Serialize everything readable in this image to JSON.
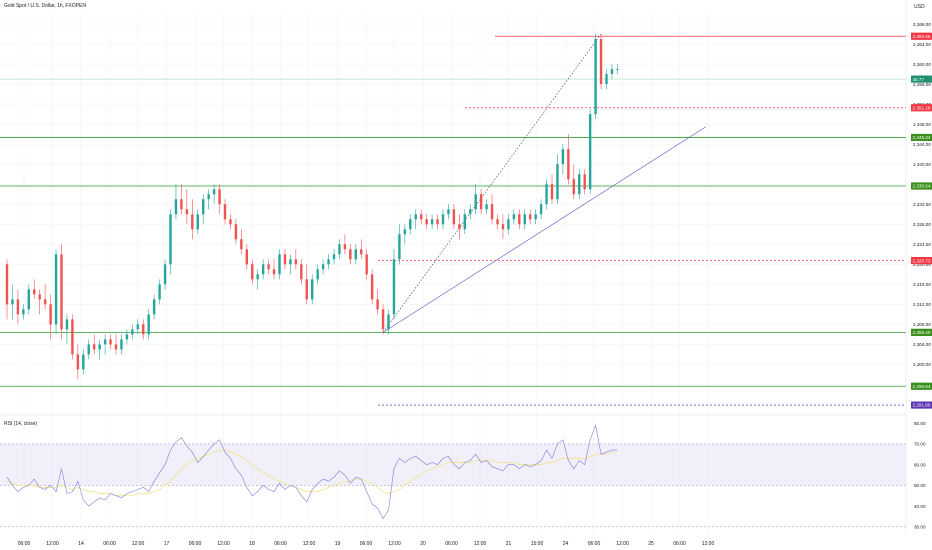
{
  "header": {
    "title": "Gold Spot / U.S. Dollar, 1h, FXOPEN",
    "currency": "USD"
  },
  "rsi": {
    "title": "RSI (14, close)"
  },
  "colors": {
    "up": "#26a69a",
    "down": "#ef5350",
    "support": "#2e9e2e",
    "support_label": "#3a8f1e",
    "resistance": "#f23645",
    "purple": "#7e57c2",
    "trend": "#5b5bc8",
    "rsi_line": "#7e7ed6",
    "rsi_ma": "#f2e279",
    "rsi_band": "#f1effa",
    "grid": "#e9ecf3"
  },
  "chart_data": [
    {
      "type": "candlestick",
      "title": "Gold Spot / U.S. Dollar, 1h, FXOPEN",
      "y_ticks": [
        "2,368.00",
        "2,364.00",
        "2,360.00",
        "2,356.00",
        "2,352.00",
        "2,348.00",
        "2,344.00",
        "2,340.00",
        "2,336.00",
        "2,332.00",
        "2,328.00",
        "2,324.00",
        "2,320.00",
        "2,316.00",
        "2,312.00",
        "2,308.00",
        "2,304.00",
        "2,300.00",
        "2,296.00"
      ],
      "ylim": [
        2290.5,
        2370.0
      ],
      "x_ticks": [
        "06:00",
        "12:00",
        "14",
        "06:00",
        "12:00",
        "17",
        "06:00",
        "12:00",
        "18",
        "06:00",
        "12:00",
        "19",
        "06:00",
        "12:00",
        "20",
        "06:00",
        "12:00",
        "21",
        "15:00",
        "24",
        "06:00",
        "12:00",
        "25",
        "06:00",
        "12:00"
      ],
      "levels": [
        {
          "price": 2365.55,
          "label": "2,365.55",
          "kind": "resistance"
        },
        {
          "price": 2357.0,
          "label": "40.77",
          "kind": "current"
        },
        {
          "price": 2351.28,
          "label": "2,351.28",
          "kind": "resistance-dashed"
        },
        {
          "price": 2345.34,
          "label": "2,345.34",
          "kind": "support"
        },
        {
          "price": 2335.64,
          "label": "2,335.64",
          "kind": "support"
        },
        {
          "price": 2320.73,
          "label": "2,320.73",
          "kind": "resistance-dashed"
        },
        {
          "price": 2306.4,
          "label": "2,306.40",
          "kind": "support"
        },
        {
          "price": 2295.64,
          "label": "2,295.64",
          "kind": "support"
        },
        {
          "price": 2291.89,
          "label": "2,291.89",
          "kind": "purple-dashed"
        }
      ],
      "candles": [
        [
          2320,
          2321,
          2309,
          2312
        ],
        [
          2312,
          2316,
          2309,
          2313
        ],
        [
          2313,
          2315,
          2308,
          2310
        ],
        [
          2310,
          2312,
          2309,
          2311
        ],
        [
          2311,
          2316,
          2310,
          2315
        ],
        [
          2315,
          2317,
          2313,
          2314
        ],
        [
          2314,
          2315,
          2310,
          2313
        ],
        [
          2313,
          2316,
          2311,
          2312
        ],
        [
          2312,
          2314,
          2305,
          2308
        ],
        [
          2308,
          2323,
          2306,
          2322
        ],
        [
          2322,
          2324,
          2305,
          2307
        ],
        [
          2307,
          2310,
          2304,
          2309
        ],
        [
          2309,
          2310,
          2301,
          2302
        ],
        [
          2302,
          2304,
          2297,
          2299
        ],
        [
          2299,
          2303,
          2298,
          2302
        ],
        [
          2302,
          2305,
          2301,
          2304
        ],
        [
          2304,
          2306,
          2302,
          2303
        ],
        [
          2303,
          2305,
          2301,
          2304
        ],
        [
          2304,
          2306,
          2302,
          2305
        ],
        [
          2305,
          2306,
          2303,
          2304
        ],
        [
          2304,
          2306,
          2302,
          2303
        ],
        [
          2303,
          2306,
          2302,
          2305
        ],
        [
          2305,
          2307,
          2304,
          2306
        ],
        [
          2306,
          2308,
          2305,
          2307
        ],
        [
          2307,
          2309,
          2306,
          2308
        ],
        [
          2308,
          2309,
          2305,
          2306
        ],
        [
          2306,
          2311,
          2305,
          2310
        ],
        [
          2310,
          2314,
          2309,
          2313
        ],
        [
          2313,
          2317,
          2312,
          2316
        ],
        [
          2316,
          2321,
          2315,
          2320
        ],
        [
          2320,
          2331,
          2318,
          2330
        ],
        [
          2330,
          2336,
          2329,
          2333
        ],
        [
          2333,
          2336,
          2330,
          2331
        ],
        [
          2331,
          2335,
          2328,
          2330
        ],
        [
          2330,
          2333,
          2325,
          2327
        ],
        [
          2327,
          2331,
          2326,
          2330
        ],
        [
          2330,
          2334,
          2328,
          2333
        ],
        [
          2333,
          2335,
          2331,
          2334
        ],
        [
          2334,
          2336,
          2332,
          2335
        ],
        [
          2335,
          2336,
          2330,
          2332
        ],
        [
          2332,
          2333,
          2328,
          2329
        ],
        [
          2329,
          2330,
          2327,
          2328
        ],
        [
          2328,
          2329,
          2324,
          2325
        ],
        [
          2325,
          2327,
          2322,
          2323
        ],
        [
          2323,
          2324,
          2319,
          2320
        ],
        [
          2320,
          2321,
          2316,
          2317
        ],
        [
          2317,
          2319,
          2315,
          2318
        ],
        [
          2318,
          2321,
          2317,
          2320
        ],
        [
          2320,
          2321,
          2318,
          2319
        ],
        [
          2319,
          2321,
          2317,
          2318
        ],
        [
          2318,
          2323,
          2317,
          2322
        ],
        [
          2322,
          2323,
          2319,
          2320
        ],
        [
          2320,
          2322,
          2318,
          2321
        ],
        [
          2321,
          2323,
          2319,
          2320
        ],
        [
          2320,
          2321,
          2316,
          2317
        ],
        [
          2317,
          2320,
          2312,
          2313
        ],
        [
          2313,
          2318,
          2312,
          2317
        ],
        [
          2317,
          2320,
          2316,
          2319
        ],
        [
          2319,
          2321,
          2318,
          2320
        ],
        [
          2320,
          2322,
          2319,
          2321
        ],
        [
          2321,
          2323,
          2320,
          2322
        ],
        [
          2322,
          2325,
          2321,
          2324
        ],
        [
          2324,
          2326,
          2322,
          2323
        ],
        [
          2323,
          2324,
          2320,
          2321
        ],
        [
          2321,
          2324,
          2320,
          2323
        ],
        [
          2323,
          2325,
          2321,
          2322
        ],
        [
          2322,
          2323,
          2317,
          2318
        ],
        [
          2318,
          2319,
          2312,
          2313
        ],
        [
          2313,
          2315,
          2310,
          2311
        ],
        [
          2311,
          2312,
          2306,
          2307
        ],
        [
          2307,
          2311,
          2306,
          2310
        ],
        [
          2310,
          2323,
          2309,
          2321
        ],
        [
          2321,
          2328,
          2320,
          2326
        ],
        [
          2326,
          2328,
          2324,
          2327
        ],
        [
          2327,
          2330,
          2326,
          2329
        ],
        [
          2329,
          2331,
          2327,
          2330
        ],
        [
          2330,
          2331,
          2328,
          2329
        ],
        [
          2329,
          2330,
          2327,
          2328
        ],
        [
          2328,
          2330,
          2327,
          2329
        ],
        [
          2329,
          2330,
          2327,
          2328
        ],
        [
          2328,
          2331,
          2327,
          2330
        ],
        [
          2330,
          2332,
          2329,
          2331
        ],
        [
          2331,
          2332,
          2327,
          2328
        ],
        [
          2328,
          2330,
          2325,
          2327
        ],
        [
          2327,
          2331,
          2326,
          2330
        ],
        [
          2330,
          2332,
          2329,
          2331
        ],
        [
          2331,
          2336,
          2330,
          2334
        ],
        [
          2334,
          2335,
          2330,
          2331
        ],
        [
          2331,
          2333,
          2330,
          2332
        ],
        [
          2332,
          2334,
          2328,
          2329
        ],
        [
          2329,
          2330,
          2327,
          2328
        ],
        [
          2328,
          2330,
          2325,
          2327
        ],
        [
          2327,
          2330,
          2326,
          2329
        ],
        [
          2329,
          2331,
          2328,
          2330
        ],
        [
          2330,
          2331,
          2327,
          2328
        ],
        [
          2328,
          2331,
          2327,
          2330
        ],
        [
          2330,
          2331,
          2328,
          2329
        ],
        [
          2329,
          2331,
          2328,
          2330
        ],
        [
          2330,
          2333,
          2329,
          2332
        ],
        [
          2332,
          2337,
          2331,
          2336
        ],
        [
          2336,
          2338,
          2332,
          2333
        ],
        [
          2333,
          2342,
          2332,
          2340
        ],
        [
          2340,
          2344,
          2338,
          2343
        ],
        [
          2343,
          2346,
          2336,
          2337
        ],
        [
          2337,
          2340,
          2333,
          2334
        ],
        [
          2334,
          2339,
          2333,
          2338
        ],
        [
          2338,
          2339,
          2334,
          2335
        ],
        [
          2335,
          2351,
          2334,
          2350
        ],
        [
          2350,
          2366,
          2349,
          2365
        ],
        [
          2365,
          2366,
          2355,
          2356
        ],
        [
          2356,
          2359,
          2355,
          2358
        ],
        [
          2358,
          2360,
          2357,
          2359
        ],
        [
          2359,
          2360,
          2358,
          2359
        ]
      ]
    },
    {
      "type": "line",
      "title": "RSI (14, close)",
      "y_ticks": [
        "80.00",
        "70.00",
        "60.00",
        "50.00",
        "40.00",
        "30.00"
      ],
      "ylim": [
        27,
        83
      ],
      "bands": [
        70,
        50,
        30
      ],
      "series": [
        {
          "name": "RSI",
          "values": [
            54,
            50,
            47,
            49,
            50,
            53,
            49,
            48,
            50,
            47,
            58,
            46,
            47,
            52,
            43,
            40,
            42,
            44,
            43,
            46,
            45,
            44,
            46,
            47,
            48,
            49,
            47,
            52,
            56,
            60,
            67,
            71,
            73,
            69,
            66,
            61,
            64,
            67,
            70,
            72,
            66,
            63,
            58,
            55,
            49,
            45,
            47,
            50,
            48,
            47,
            51,
            48,
            50,
            49,
            45,
            42,
            48,
            51,
            53,
            52,
            54,
            57,
            55,
            51,
            54,
            53,
            47,
            41,
            39,
            34,
            38,
            58,
            63,
            61,
            63,
            64,
            62,
            60,
            61,
            60,
            63,
            64,
            60,
            58,
            61,
            62,
            65,
            61,
            62,
            59,
            58,
            57,
            60,
            60,
            58,
            60,
            59,
            60,
            62,
            67,
            63,
            70,
            72,
            62,
            58,
            62,
            60,
            72,
            79,
            65,
            66,
            67,
            67
          ]
        },
        {
          "name": "MA",
          "values": [
            52,
            51,
            50,
            50,
            50,
            50,
            49,
            49,
            49,
            49,
            50,
            49,
            48,
            49,
            48,
            47,
            47,
            46,
            46,
            46,
            45,
            45,
            45,
            45,
            46,
            46,
            46,
            47,
            48,
            50,
            52,
            55,
            58,
            60,
            62,
            63,
            64,
            65,
            66,
            67,
            67,
            66,
            65,
            64,
            62,
            60,
            58,
            56,
            55,
            53,
            52,
            51,
            50,
            49,
            48,
            47,
            47,
            47,
            48,
            49,
            50,
            51,
            52,
            52,
            53,
            53,
            52,
            51,
            49,
            47,
            46,
            47,
            48,
            50,
            52,
            54,
            55,
            57,
            58,
            59,
            60,
            61,
            61,
            61,
            61,
            61,
            62,
            62,
            62,
            62,
            61,
            61,
            61,
            61,
            60,
            60,
            60,
            60,
            60,
            61,
            61,
            62,
            63,
            63,
            63,
            63,
            63,
            64,
            65,
            65,
            65,
            66,
            66
          ]
        }
      ]
    }
  ]
}
